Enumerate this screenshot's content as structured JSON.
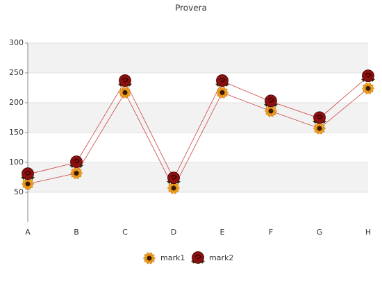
{
  "chart_data": {
    "type": "line",
    "title": "Provera",
    "categories": [
      "A",
      "B",
      "C",
      "D",
      "E",
      "F",
      "G",
      "H"
    ],
    "series": [
      {
        "name": "mark1",
        "color": "#f0a020",
        "values": [
          64,
          82,
          217,
          57,
          217,
          186,
          157,
          224
        ]
      },
      {
        "name": "mark2",
        "color": "#8b1010",
        "values": [
          80,
          100,
          236,
          73,
          236,
          202,
          174,
          244
        ]
      }
    ],
    "line_color": "#d04040",
    "ylim": [
      0,
      300
    ],
    "yticks": [
      50,
      100,
      150,
      200,
      250,
      300
    ],
    "grid": true,
    "legend": "bottom"
  }
}
